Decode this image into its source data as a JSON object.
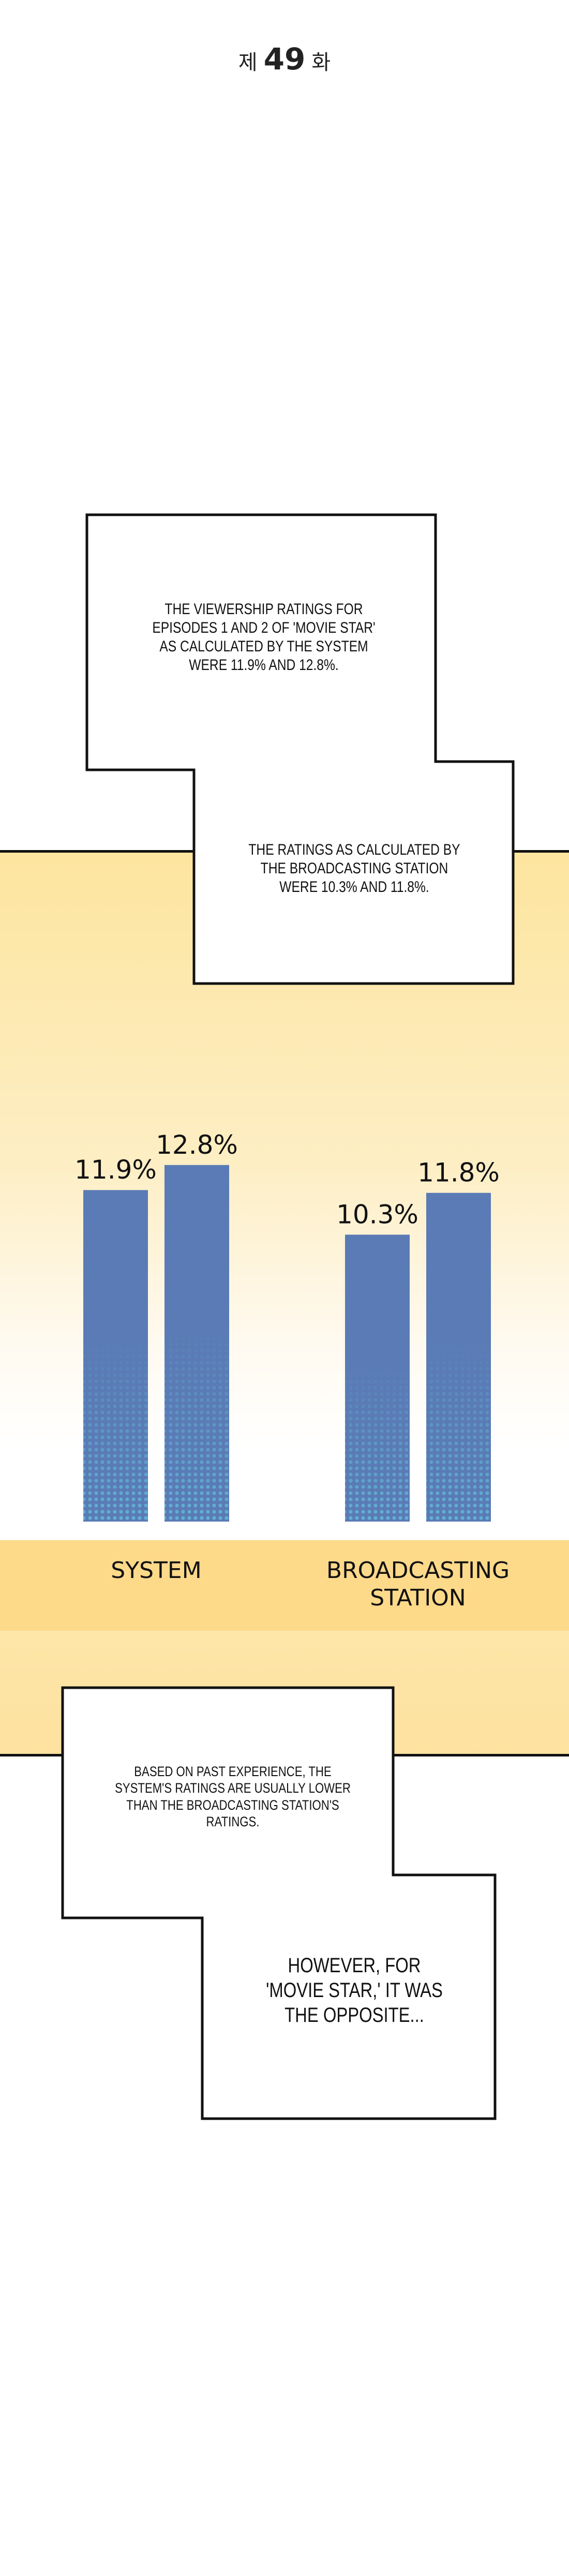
{
  "header": {
    "prefix": "제",
    "number": "49",
    "suffix": "화"
  },
  "narration": [
    "THE VIEWERSHIP RATINGS FOR EPISODES 1 AND 2 OF 'MOVIE STAR' AS CALCULATED BY THE SYSTEM WERE 11.9% AND 12.8%.",
    "THE RATINGS AS CALCULATED BY THE BROADCASTING STATION WERE 10.3% AND 11.8%.",
    "BASED ON PAST EXPERIENCE, THE SYSTEM'S RATINGS ARE USUALLY LOWER THAN THE BROADCASTING STATION'S RATINGS.",
    "HOWEVER, FOR 'MOVIE STAR,' IT WAS THE OPPOSITE..."
  ],
  "chart_data": {
    "type": "bar",
    "categories": [
      "SYSTEM",
      "BROADCASTING STATION"
    ],
    "series": [
      {
        "color": "#5a7bb5",
        "values": [
          11.9,
          10.3
        ],
        "value_labels": [
          "11.9%",
          "10.3%"
        ]
      },
      {
        "color": "#5a7bb5",
        "values": [
          12.8,
          11.8
        ],
        "value_labels": [
          "12.8%",
          "11.8%"
        ]
      }
    ],
    "ylim": [
      0,
      13
    ]
  }
}
